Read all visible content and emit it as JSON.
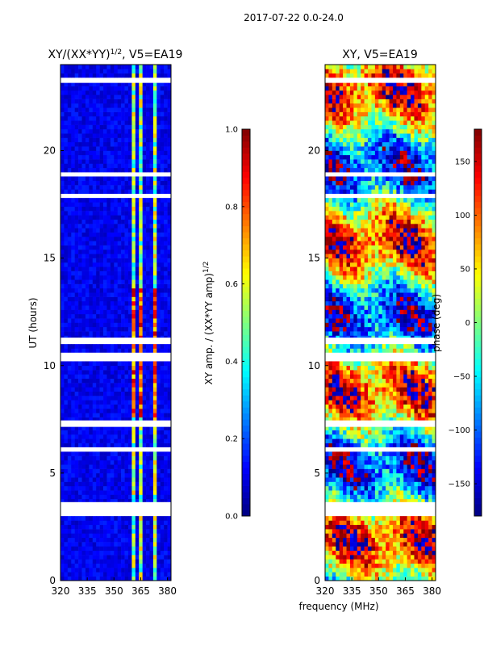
{
  "chart_data": {
    "suptitle": "2017-07-22 0.0-24.0",
    "xlabel": "frequency (MHz)",
    "ylabel": "UT (hours)",
    "x_range": [
      320,
      382
    ],
    "y_range": [
      0,
      24
    ],
    "x_ticks": [
      320,
      335,
      350,
      365,
      380
    ],
    "y_ticks": [
      0,
      5,
      10,
      15,
      20
    ],
    "panels": [
      {
        "title": "XY/(XX*YY)",
        "title_sup": "1/2",
        "title_suffix": ", V5=EA19",
        "type": "heatmap",
        "quantity": "amplitude",
        "colorbar": {
          "label": "XY amp. / (XX*YY amp)",
          "label_sup": "1/2",
          "range": [
            0.0,
            1.0
          ],
          "ticks": [
            "0.0",
            "0.2",
            "0.4",
            "0.6",
            "0.8",
            "1.0"
          ],
          "tick_values": [
            0.0,
            0.2,
            0.4,
            0.6,
            0.8,
            1.0
          ]
        }
      },
      {
        "title": "XY, V5=EA19",
        "type": "heatmap",
        "quantity": "phase",
        "colorbar": {
          "label": "phase (deg)",
          "range": [
            -180,
            180
          ],
          "ticks": [
            "−150",
            "−100",
            "−50",
            "0",
            "50",
            "100",
            "150"
          ],
          "tick_values": [
            -150,
            -100,
            -50,
            0,
            50,
            100,
            150
          ]
        }
      }
    ],
    "flagged_hours": [
      [
        3.05,
        3.65
      ],
      [
        6.0,
        6.2
      ],
      [
        7.15,
        7.45
      ],
      [
        10.3,
        10.6
      ],
      [
        11.1,
        11.3
      ],
      [
        17.8,
        17.95
      ],
      [
        18.8,
        18.95
      ],
      [
        23.15,
        23.35
      ]
    ],
    "rfi_channels_mhz": [
      [
        361,
        362.5
      ],
      [
        365,
        367
      ],
      [
        370,
        371
      ],
      [
        373,
        375
      ],
      [
        378,
        379
      ]
    ],
    "colormap_stops": [
      "#00007f",
      "#0000ff",
      "#007fff",
      "#00ffff",
      "#7fff7f",
      "#ffff00",
      "#ff7f00",
      "#ff0000",
      "#7f0000"
    ]
  }
}
